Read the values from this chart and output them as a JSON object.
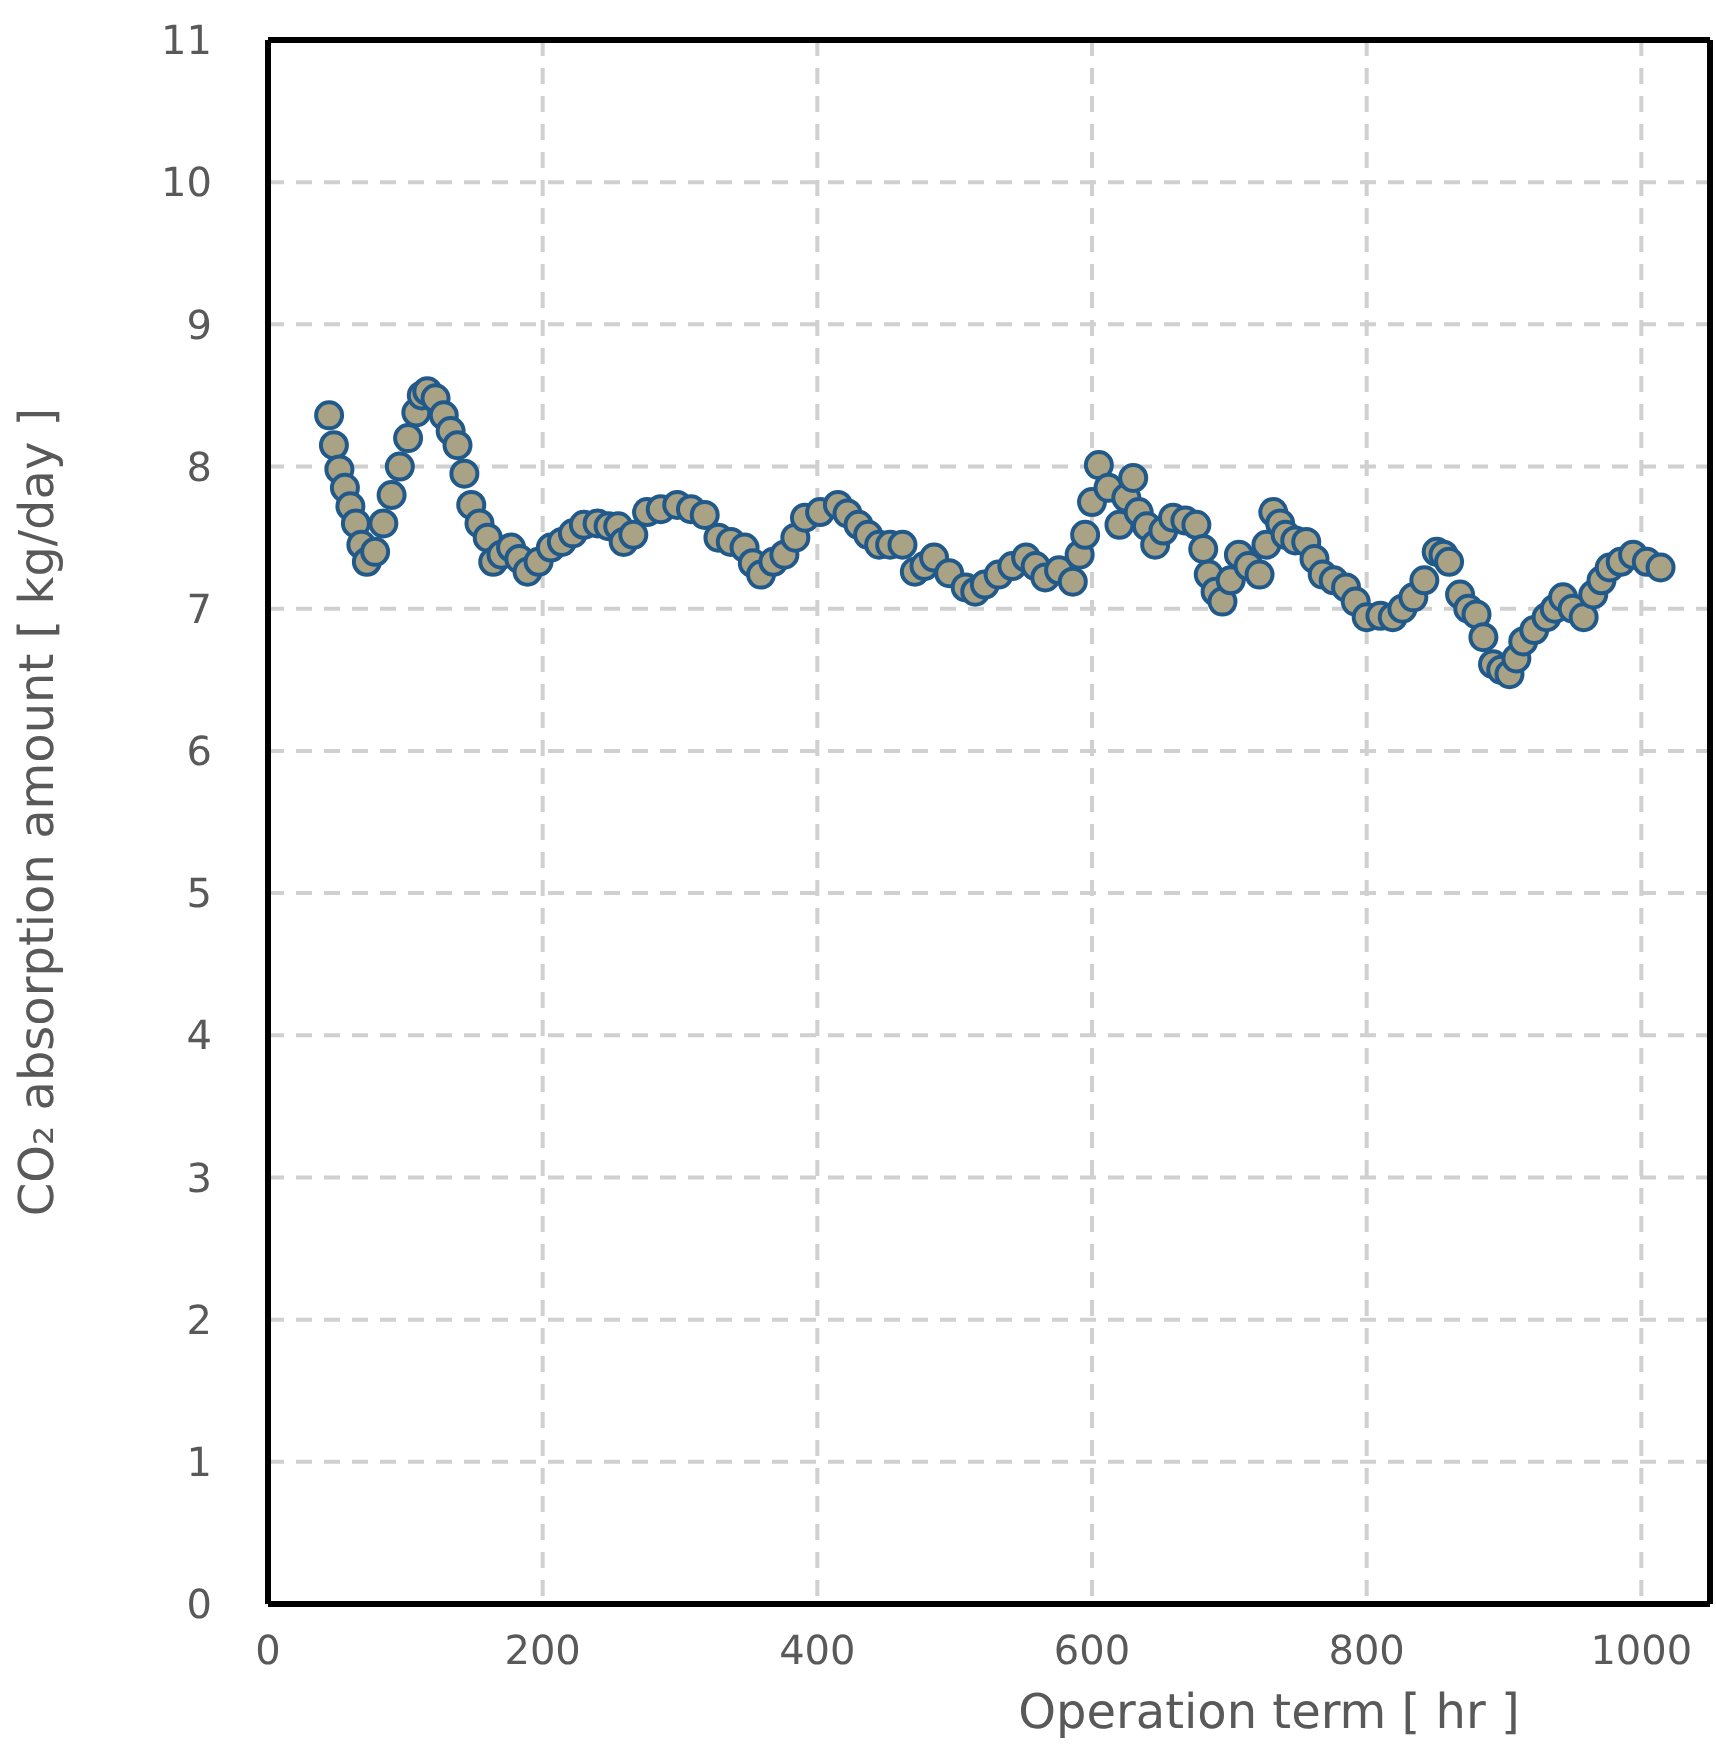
{
  "chart_data": {
    "type": "scatter",
    "xlabel": "Operation term  [ hr ]",
    "ylabel": "CO₂ absorption amount  [ kg/day ]",
    "xlim": [
      0,
      1050
    ],
    "xticks": [
      0,
      200,
      400,
      600,
      800,
      1000
    ],
    "ylim": [
      0,
      11
    ],
    "yticks": [
      0,
      1,
      2,
      3,
      4,
      5,
      6,
      7,
      8,
      9,
      10,
      11
    ],
    "grid": true,
    "marker": "circle",
    "series": [
      {
        "color": "#a9a284",
        "x": [
          44.5,
          48,
          52,
          56,
          60,
          64,
          68,
          72,
          78,
          84,
          90,
          96,
          102,
          108,
          112,
          116,
          122,
          128,
          133,
          138,
          143,
          148,
          154,
          160,
          164,
          170,
          177,
          183,
          189,
          197,
          206,
          214,
          222,
          230,
          240,
          248,
          255,
          259,
          266,
          276,
          286,
          298,
          308,
          318,
          328,
          337,
          347,
          353,
          359,
          368,
          376,
          384,
          391,
          402,
          415,
          422,
          430,
          437,
          445,
          453,
          462,
          471,
          478,
          485,
          496,
          508,
          515,
          522,
          532,
          542,
          552,
          559,
          566,
          576,
          586,
          591,
          595,
          600,
          605,
          612,
          620,
          625,
          630,
          634,
          640,
          646,
          652,
          659,
          668,
          676,
          681,
          685,
          690,
          695,
          701,
          707,
          714,
          722,
          727,
          732,
          737,
          741,
          748,
          756,
          762,
          768,
          776,
          785,
          792,
          800,
          810,
          819,
          826,
          834,
          842,
          851,
          856,
          860,
          868,
          874,
          880,
          885,
          892,
          898,
          904,
          909,
          914,
          922,
          931,
          937,
          943,
          950,
          958,
          965,
          971,
          977,
          985,
          994,
          1004,
          1014
        ],
        "values": [
          8.36,
          8.15,
          7.98,
          7.85,
          7.72,
          7.6,
          7.45,
          7.33,
          7.4,
          7.6,
          7.8,
          8.0,
          8.2,
          8.38,
          8.5,
          8.53,
          8.48,
          8.36,
          8.25,
          8.15,
          7.95,
          7.73,
          7.6,
          7.5,
          7.33,
          7.38,
          7.43,
          7.35,
          7.26,
          7.33,
          7.43,
          7.47,
          7.53,
          7.59,
          7.6,
          7.58,
          7.58,
          7.47,
          7.52,
          7.68,
          7.7,
          7.73,
          7.7,
          7.66,
          7.5,
          7.47,
          7.43,
          7.32,
          7.24,
          7.33,
          7.38,
          7.5,
          7.64,
          7.68,
          7.73,
          7.67,
          7.59,
          7.52,
          7.45,
          7.45,
          7.45,
          7.26,
          7.3,
          7.36,
          7.25,
          7.15,
          7.12,
          7.17,
          7.24,
          7.3,
          7.36,
          7.3,
          7.22,
          7.27,
          7.19,
          7.38,
          7.52,
          7.75,
          8.01,
          7.85,
          7.59,
          7.78,
          7.92,
          7.68,
          7.58,
          7.45,
          7.55,
          7.64,
          7.62,
          7.59,
          7.42,
          7.24,
          7.12,
          7.05,
          7.2,
          7.38,
          7.3,
          7.24,
          7.45,
          7.68,
          7.6,
          7.52,
          7.48,
          7.47,
          7.35,
          7.24,
          7.2,
          7.15,
          7.05,
          6.94,
          6.95,
          6.94,
          7.0,
          7.08,
          7.2,
          7.4,
          7.38,
          7.33,
          7.1,
          7.0,
          6.96,
          6.8,
          6.61,
          6.57,
          6.54,
          6.65,
          6.77,
          6.85,
          6.94,
          7.0,
          7.08,
          7.0,
          6.94,
          7.1,
          7.2,
          7.29,
          7.33,
          7.38,
          7.33,
          7.29
        ]
      }
    ]
  }
}
